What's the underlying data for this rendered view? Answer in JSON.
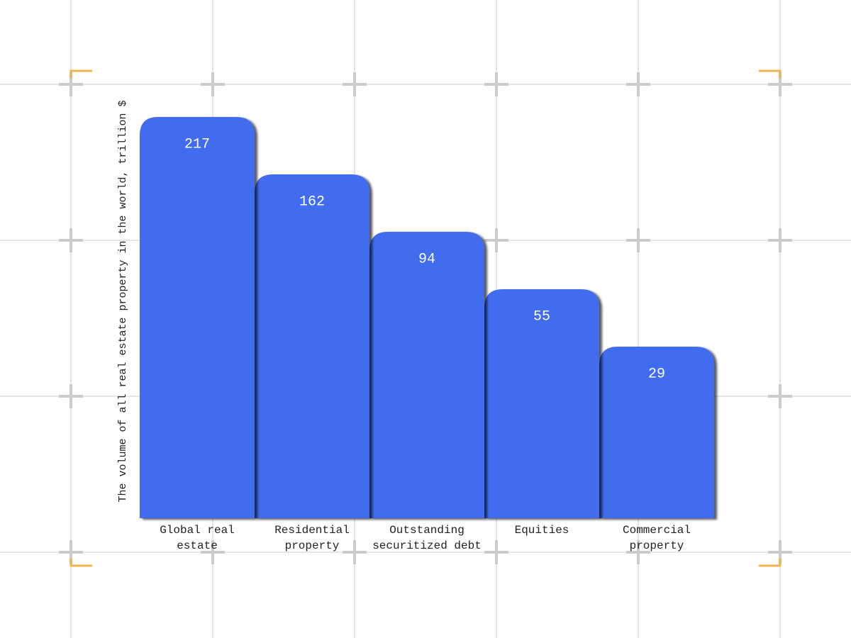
{
  "chart_data": {
    "type": "bar",
    "y_label": "The volume of all real estate property in the world, trillion $",
    "categories": [
      "Global real estate",
      "Residential property",
      "Outstanding securitized debt",
      "Equities",
      "Commercial property"
    ],
    "values": [
      217,
      162,
      94,
      55,
      29
    ],
    "color": "#416ced"
  }
}
